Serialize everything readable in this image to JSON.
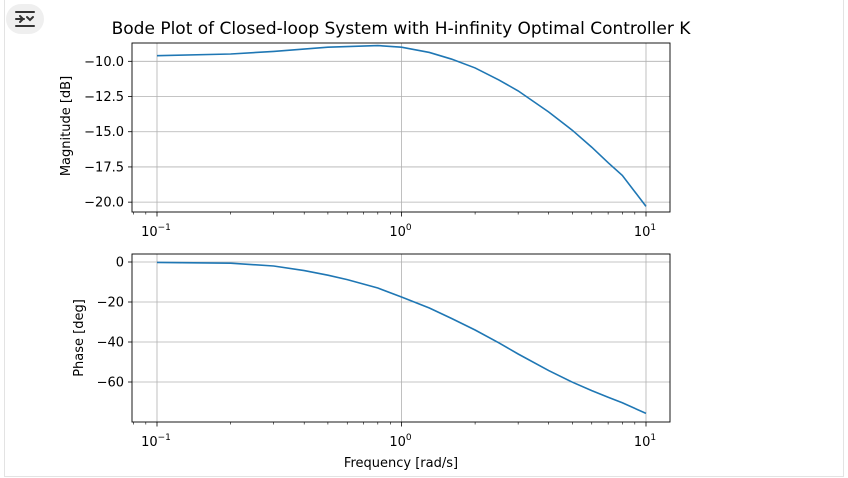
{
  "toolbar": {
    "toggle_icon": "output-toggle-icon"
  },
  "chart_data": [
    {
      "type": "line",
      "title": "Bode Plot of Closed-loop System with H-infinity Optimal Controller K",
      "xscale": "log",
      "xlim": [
        0.1,
        10
      ],
      "xticks": [
        {
          "base": "10",
          "exp": "−1",
          "value": 0.1
        },
        {
          "base": "10",
          "exp": "0",
          "value": 1
        },
        {
          "base": "10",
          "exp": "1",
          "value": 10
        }
      ],
      "xlabel": "",
      "ylabel": "Magnitude [dB]",
      "ylim": [
        -20.7,
        -8.7
      ],
      "yticks": [
        "−10.0",
        "−12.5",
        "−15.0",
        "−17.5",
        "−20.0"
      ],
      "ytick_values": [
        -10.0,
        -12.5,
        -15.0,
        -17.5,
        -20.0
      ],
      "grid": true,
      "series": [
        {
          "name": "magnitude",
          "color": "#1f77b4",
          "x": [
            0.1,
            0.2,
            0.3,
            0.5,
            0.8,
            1.0,
            1.3,
            1.6,
            2.0,
            2.5,
            3.0,
            4.0,
            5.0,
            6.0,
            7.0,
            8.0,
            10.0
          ],
          "y": [
            -9.6,
            -9.48,
            -9.3,
            -9.0,
            -8.88,
            -9.0,
            -9.37,
            -9.84,
            -10.47,
            -11.32,
            -12.1,
            -13.6,
            -14.9,
            -16.1,
            -17.2,
            -18.1,
            -20.3
          ]
        }
      ]
    },
    {
      "type": "line",
      "title": "",
      "xscale": "log",
      "xlim": [
        0.1,
        10
      ],
      "xticks": [
        {
          "base": "10",
          "exp": "−1",
          "value": 0.1
        },
        {
          "base": "10",
          "exp": "0",
          "value": 1
        },
        {
          "base": "10",
          "exp": "1",
          "value": 10
        }
      ],
      "xlabel": "Frequency [rad/s]",
      "ylabel": "Phase [deg]",
      "ylim": [
        -80,
        4
      ],
      "yticks": [
        "0",
        "−20",
        "−40",
        "−60"
      ],
      "ytick_values": [
        0,
        -20,
        -40,
        -60
      ],
      "grid": true,
      "series": [
        {
          "name": "phase",
          "color": "#1f77b4",
          "x": [
            0.1,
            0.2,
            0.3,
            0.4,
            0.5,
            0.6,
            0.8,
            1.0,
            1.3,
            1.6,
            2.0,
            2.5,
            3.0,
            4.0,
            5.0,
            6.0,
            7.0,
            8.0,
            10.0
          ],
          "y": [
            -0.2,
            -0.6,
            -2.0,
            -4.3,
            -6.6,
            -8.8,
            -13.0,
            -17.5,
            -23.0,
            -28.2,
            -34.0,
            -40.4,
            -46.0,
            -54.3,
            -60.1,
            -64.3,
            -67.6,
            -70.4,
            -75.7
          ]
        }
      ]
    }
  ]
}
